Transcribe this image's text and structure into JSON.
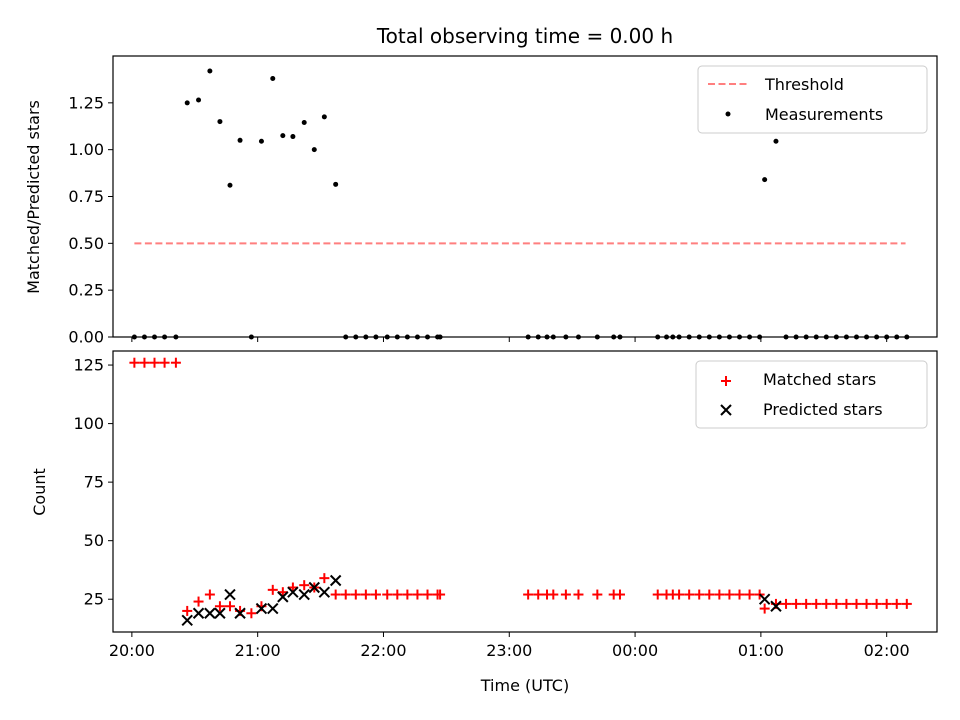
{
  "chart_data": [
    {
      "panel": "top",
      "type": "scatter",
      "title": "Total observing time = 0.00 h",
      "xlabel": "",
      "ylabel": "Matched/Predicted stars",
      "xlim": [
        -0.15,
        6.4
      ],
      "ylim": [
        0,
        1.5
      ],
      "yticks": [
        0,
        0.25,
        0.5,
        0.75,
        1.0,
        1.25
      ],
      "ytick_labels": [
        "0.00",
        "0.25",
        "0.50",
        "0.75",
        "1.00",
        "1.25"
      ],
      "legend_position": "upper-right",
      "series": [
        {
          "name": "Threshold",
          "kind": "line",
          "style": "dashed",
          "color": "#ff7f7f",
          "x": [
            0.02,
            6.15
          ],
          "y": [
            0.5,
            0.5
          ]
        },
        {
          "name": "Measurements",
          "kind": "scatter",
          "marker": "dot",
          "color": "#000000",
          "x": [
            0.02,
            0.1,
            0.18,
            0.26,
            0.35,
            0.44,
            0.53,
            0.62,
            0.7,
            0.78,
            0.86,
            0.95,
            1.03,
            1.12,
            1.2,
            1.28,
            1.37,
            1.45,
            1.53,
            1.62,
            1.7,
            1.78,
            1.86,
            1.94,
            2.03,
            2.11,
            2.19,
            2.27,
            2.35,
            2.43,
            2.45,
            3.15,
            3.23,
            3.3,
            3.35,
            3.45,
            3.55,
            3.7,
            3.83,
            3.88,
            4.18,
            4.25,
            4.3,
            4.35,
            4.43,
            4.51,
            4.59,
            4.67,
            4.75,
            4.83,
            4.91,
            4.99,
            5.03,
            5.12,
            5.2,
            5.28,
            5.36,
            5.44,
            5.52,
            5.6,
            5.68,
            5.76,
            5.84,
            5.92,
            6.0,
            6.08,
            6.16
          ],
          "y": [
            0,
            0,
            0,
            0,
            0,
            1.25,
            1.265,
            1.42,
            1.15,
            0.81,
            1.05,
            0,
            1.045,
            1.38,
            1.075,
            1.07,
            1.145,
            1.0,
            1.175,
            0.815,
            0,
            0,
            0,
            0,
            0,
            0,
            0,
            0,
            0,
            0,
            0,
            0,
            0,
            0,
            0,
            0,
            0,
            0,
            0,
            0,
            0,
            0,
            0,
            0,
            0,
            0,
            0,
            0,
            0,
            0,
            0,
            0,
            0.84,
            1.045,
            0,
            0,
            0,
            0,
            0,
            0,
            0,
            0,
            0,
            0,
            0,
            0,
            0
          ]
        }
      ]
    },
    {
      "panel": "bottom",
      "type": "scatter",
      "title": "",
      "xlabel": "Time (UTC)",
      "ylabel": "Count",
      "xlim": [
        -0.15,
        6.4
      ],
      "ylim": [
        11,
        131
      ],
      "yticks": [
        25,
        50,
        75,
        100,
        125
      ],
      "ytick_labels": [
        "25",
        "50",
        "75",
        "100",
        "125"
      ],
      "xticks": [
        0,
        1,
        2,
        3,
        4,
        5,
        6
      ],
      "xtick_labels": [
        "20:00",
        "21:00",
        "22:00",
        "23:00",
        "00:00",
        "01:00",
        "02:00"
      ],
      "legend_position": "upper-right",
      "series": [
        {
          "name": "Matched stars",
          "kind": "scatter",
          "marker": "plus",
          "color": "#ff0000",
          "x": [
            0.02,
            0.1,
            0.18,
            0.26,
            0.35,
            0.44,
            0.53,
            0.62,
            0.7,
            0.78,
            0.86,
            0.95,
            1.03,
            1.12,
            1.2,
            1.28,
            1.37,
            1.45,
            1.53,
            1.62,
            1.7,
            1.78,
            1.86,
            1.94,
            2.03,
            2.11,
            2.19,
            2.27,
            2.35,
            2.43,
            2.45,
            3.15,
            3.23,
            3.3,
            3.35,
            3.45,
            3.55,
            3.7,
            3.83,
            3.88,
            4.18,
            4.25,
            4.3,
            4.35,
            4.43,
            4.51,
            4.59,
            4.67,
            4.75,
            4.83,
            4.91,
            4.99,
            5.03,
            5.12,
            5.2,
            5.28,
            5.36,
            5.44,
            5.52,
            5.6,
            5.68,
            5.76,
            5.84,
            5.92,
            6.0,
            6.08,
            6.16
          ],
          "y": [
            126,
            126,
            126,
            126,
            126,
            20,
            24,
            27,
            22,
            22,
            20,
            19,
            22,
            29,
            28,
            30,
            31,
            30,
            34,
            27,
            27,
            27,
            27,
            27,
            27,
            27,
            27,
            27,
            27,
            27,
            27,
            27,
            27,
            27,
            27,
            27,
            27,
            27,
            27,
            27,
            27,
            27,
            27,
            27,
            27,
            27,
            27,
            27,
            27,
            27,
            27,
            27,
            21,
            23,
            23,
            23,
            23,
            23,
            23,
            23,
            23,
            23,
            23,
            23,
            23,
            23,
            23
          ]
        },
        {
          "name": "Predicted stars",
          "kind": "scatter",
          "marker": "x",
          "color": "#000000",
          "x": [
            0.44,
            0.53,
            0.62,
            0.7,
            0.78,
            0.86,
            1.03,
            1.12,
            1.2,
            1.28,
            1.37,
            1.45,
            1.53,
            1.62,
            5.03,
            5.12
          ],
          "y": [
            16,
            19,
            19,
            19,
            27,
            19,
            21,
            21,
            26,
            28,
            27,
            30,
            28,
            33,
            25,
            22
          ]
        }
      ]
    }
  ]
}
